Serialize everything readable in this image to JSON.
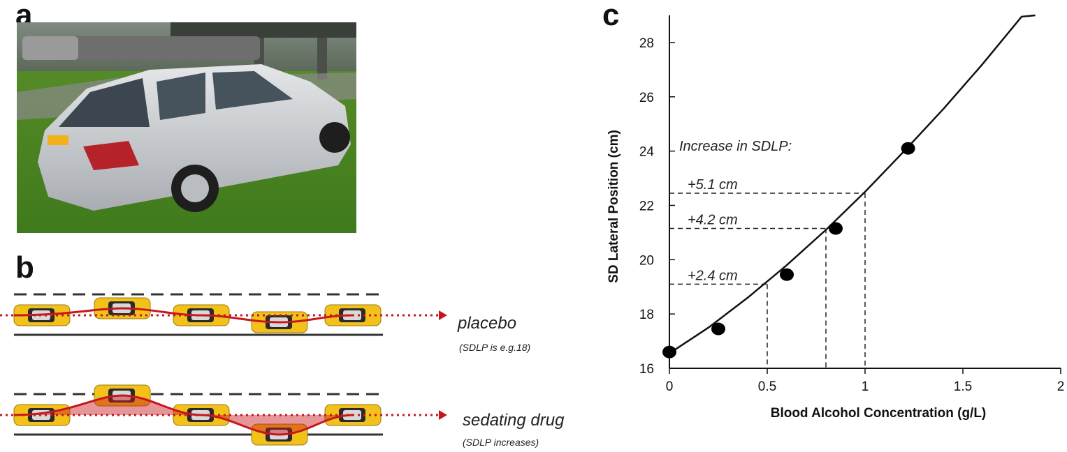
{
  "panels": {
    "a": {
      "letter": "a"
    },
    "b": {
      "letter": "b",
      "rows": [
        {
          "label": "placebo",
          "note": "(SDLP is e.g.18)"
        },
        {
          "label": "sedating drug",
          "note": "(SDLP increases)"
        }
      ]
    },
    "c": {
      "letter": "c",
      "annotation_title": "Increase in SDLP:"
    }
  },
  "colors": {
    "trajectory": "#c8161d",
    "car_yellow": "#f2c21a",
    "lane_line": "#333333",
    "data_point": "#000000"
  },
  "chart_data": {
    "type": "scatter",
    "xlabel": "Blood Alcohol Concentration (g/L)",
    "ylabel": "SD Lateral Position (cm)",
    "xlim": [
      0,
      2
    ],
    "ylim": [
      16,
      29
    ],
    "xticks": [
      0,
      0.5,
      1,
      1.5,
      2
    ],
    "xtick_labels": [
      "0",
      "0.5",
      "1",
      "1.5",
      "2"
    ],
    "yticks": [
      16,
      18,
      20,
      22,
      24,
      26,
      28
    ],
    "ytick_labels": [
      "16",
      "18",
      "20",
      "22",
      "24",
      "26",
      "28"
    ],
    "points": [
      {
        "x": 0.0,
        "y": 16.6
      },
      {
        "x": 0.25,
        "y": 17.45
      },
      {
        "x": 0.6,
        "y": 19.45
      },
      {
        "x": 0.85,
        "y": 21.15
      },
      {
        "x": 1.22,
        "y": 24.1
      }
    ],
    "fit_curve": {
      "x": [
        0,
        0.2,
        0.4,
        0.6,
        0.8,
        1.0,
        1.2,
        1.4,
        1.6,
        1.8,
        1.87
      ],
      "y": [
        16.55,
        17.5,
        18.6,
        19.8,
        21.1,
        22.5,
        24.0,
        25.55,
        27.2,
        28.95,
        29.0
      ]
    },
    "annotations": [
      {
        "text": "+2.4 cm",
        "x": 0.5,
        "y": 19.1
      },
      {
        "text": "+4.2 cm",
        "x": 0.8,
        "y": 21.15
      },
      {
        "text": "+5.1 cm",
        "x": 1.0,
        "y": 22.45
      }
    ],
    "grid": false
  }
}
